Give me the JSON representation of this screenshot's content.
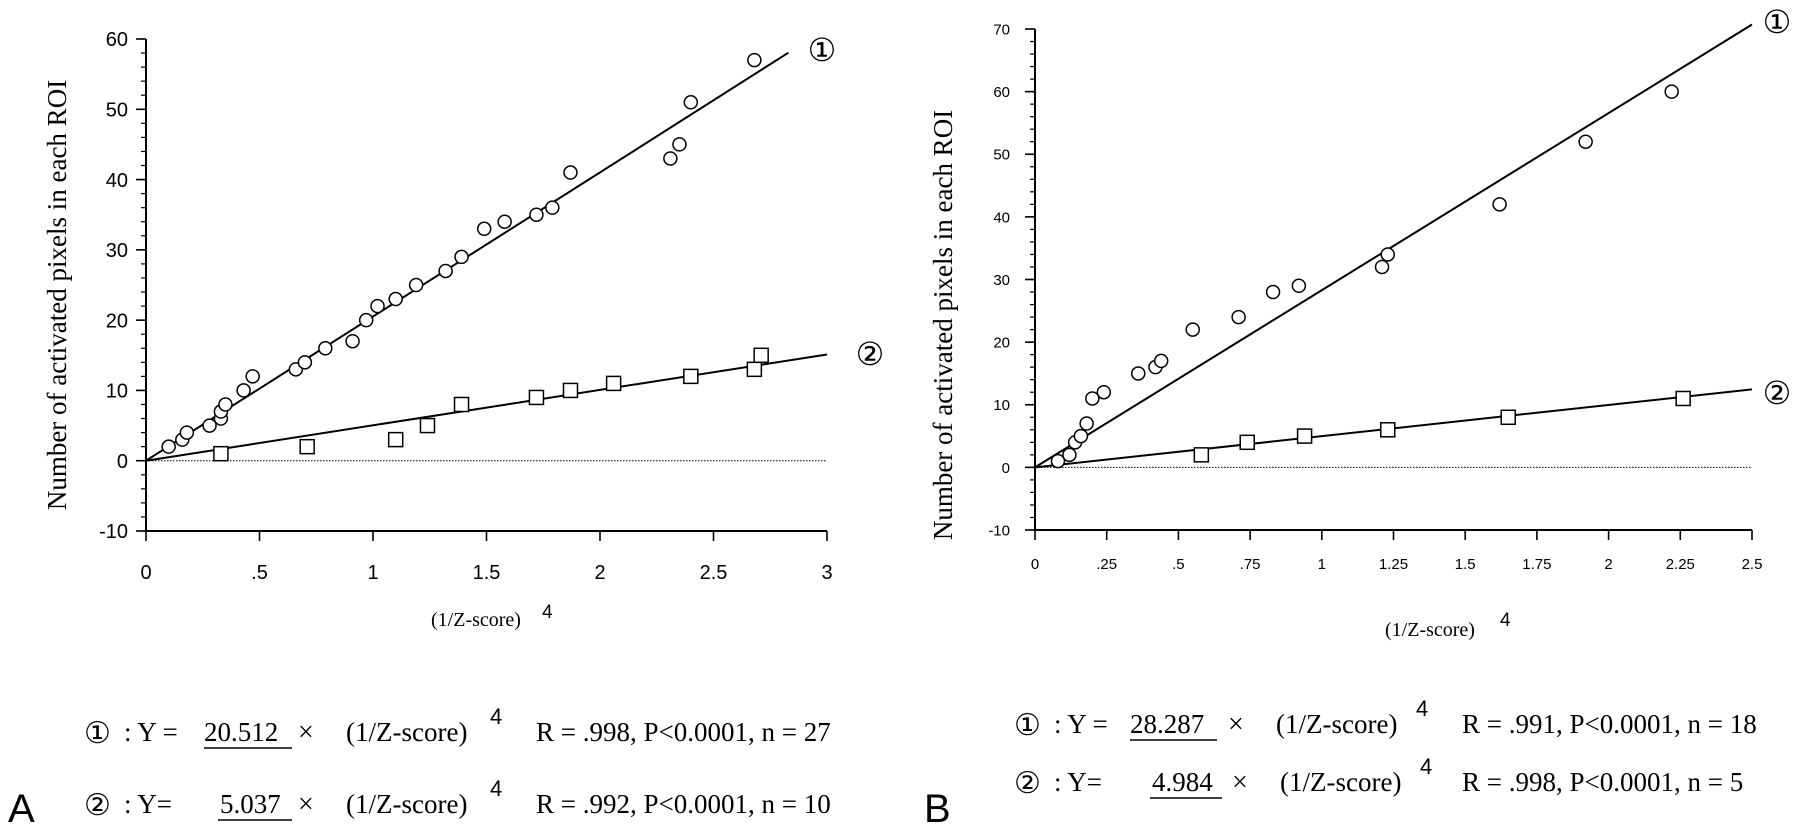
{
  "chart_data": [
    {
      "type": "scatter",
      "panel": "A",
      "xlabel": "(1/Z-score)",
      "xlabel_sup": "4",
      "ylabel": "Number of activated pixels in each ROI",
      "xlim": [
        0,
        3
      ],
      "ylim": [
        -10,
        60
      ],
      "x_ticks": [
        {
          "value": 0,
          "label": "0"
        },
        {
          "value": 0.5,
          "label": ".5"
        },
        {
          "value": 1,
          "label": "1"
        },
        {
          "value": 1.5,
          "label": "1.5"
        },
        {
          "value": 2,
          "label": "2"
        },
        {
          "value": 2.5,
          "label": "2.5"
        },
        {
          "value": 3,
          "label": "3"
        }
      ],
      "y_ticks": [
        {
          "value": -10,
          "label": "-10"
        },
        {
          "value": 0,
          "label": "0"
        },
        {
          "value": 10,
          "label": "10"
        },
        {
          "value": 20,
          "label": "20"
        },
        {
          "value": 30,
          "label": "30"
        },
        {
          "value": 40,
          "label": "40"
        },
        {
          "value": 50,
          "label": "50"
        },
        {
          "value": 60,
          "label": "60"
        }
      ],
      "y_minor_step": 2,
      "zero_line": {
        "y": 0,
        "x_end": 3
      },
      "series": [
        {
          "label": "①",
          "marker": "circle",
          "fit": {
            "slope": 20.512,
            "x_end": 2.83
          },
          "x": [
            0.1,
            0.16,
            0.18,
            0.28,
            0.33,
            0.33,
            0.35,
            0.43,
            0.47,
            0.66,
            0.7,
            0.79,
            0.91,
            0.97,
            1.02,
            1.1,
            1.19,
            1.32,
            1.39,
            1.49,
            1.58,
            1.72,
            1.79,
            1.87,
            2.31,
            2.35,
            2.4,
            2.68
          ],
          "y": [
            2,
            3,
            4,
            5,
            6,
            7,
            8,
            10,
            12,
            13,
            14,
            16,
            17,
            20,
            22,
            23,
            25,
            27,
            29,
            33,
            34,
            35,
            36,
            41,
            43,
            45,
            51,
            57
          ]
        },
        {
          "label": "②",
          "marker": "square",
          "fit": {
            "slope": 5.037,
            "x_end": 3.0
          },
          "x": [
            0.33,
            0.71,
            1.1,
            1.24,
            1.39,
            1.72,
            1.87,
            2.06,
            2.4,
            2.68,
            2.71
          ],
          "y": [
            1,
            2,
            3,
            5,
            8,
            9,
            10,
            11,
            12,
            13,
            15
          ]
        }
      ]
    },
    {
      "type": "scatter",
      "panel": "B",
      "xlabel": "(1/Z-score)",
      "xlabel_sup": "4",
      "ylabel": "Number of activated pixels in each ROI",
      "xlim": [
        0,
        2.5
      ],
      "ylim": [
        -10,
        70
      ],
      "x_ticks": [
        {
          "value": 0,
          "label": "0"
        },
        {
          "value": 0.25,
          "label": ".25"
        },
        {
          "value": 0.5,
          "label": ".5"
        },
        {
          "value": 0.75,
          "label": ".75"
        },
        {
          "value": 1,
          "label": "1"
        },
        {
          "value": 1.25,
          "label": "1.25"
        },
        {
          "value": 1.5,
          "label": "1.5"
        },
        {
          "value": 1.75,
          "label": "1.75"
        },
        {
          "value": 2,
          "label": "2"
        },
        {
          "value": 2.25,
          "label": "2.25"
        },
        {
          "value": 2.5,
          "label": "2.5"
        }
      ],
      "y_ticks": [
        {
          "value": -10,
          "label": "-10"
        },
        {
          "value": 0,
          "label": "0"
        },
        {
          "value": 10,
          "label": "10"
        },
        {
          "value": 20,
          "label": "20"
        },
        {
          "value": 30,
          "label": "30"
        },
        {
          "value": 40,
          "label": "40"
        },
        {
          "value": 50,
          "label": "50"
        },
        {
          "value": 60,
          "label": "60"
        },
        {
          "value": 70,
          "label": "70"
        }
      ],
      "y_minor_step": 2,
      "zero_line": {
        "y": 0,
        "x_end": 2.5
      },
      "series": [
        {
          "label": "①",
          "marker": "circle",
          "fit": {
            "slope": 28.287,
            "x_end": 2.5
          },
          "x": [
            0.08,
            0.12,
            0.14,
            0.16,
            0.18,
            0.2,
            0.24,
            0.36,
            0.42,
            0.44,
            0.55,
            0.71,
            0.83,
            0.92,
            1.21,
            1.23,
            1.62,
            1.92,
            2.22
          ],
          "y": [
            1,
            2,
            4,
            5,
            7,
            11,
            12,
            15,
            16,
            17,
            22,
            24,
            28,
            29,
            32,
            34,
            42,
            52,
            60
          ]
        },
        {
          "label": "②",
          "marker": "square",
          "fit": {
            "slope": 4.984,
            "x_end": 2.5
          },
          "x": [
            0.58,
            0.74,
            0.94,
            1.23,
            1.65,
            2.26
          ],
          "y": [
            2,
            4,
            5,
            6,
            8,
            11
          ]
        }
      ]
    }
  ],
  "panel_a": {
    "letter": "A",
    "eq1": {
      "marker": "①",
      "lhs": ": Y =",
      "coef": "20.512",
      "times": "×",
      "var": "(1/Z-score)",
      "sup": "4",
      "stats": "R = .998, P<0.0001, n = 27"
    },
    "eq2": {
      "marker": "②",
      "lhs": ": Y=",
      "coef": "5.037",
      "times": "×",
      "var": "(1/Z-score)",
      "sup": "4",
      "stats": "R = .992, P<0.0001, n = 10"
    }
  },
  "panel_b": {
    "letter": "B",
    "eq1": {
      "marker": "①",
      "lhs": ": Y =",
      "coef": "28.287",
      "times": "×",
      "var": "(1/Z-score)",
      "sup": "4",
      "stats": "R = .991, P<0.0001, n = 18"
    },
    "eq2": {
      "marker": "②",
      "lhs": ": Y=",
      "coef": "4.984",
      "times": "×",
      "var": "(1/Z-score)",
      "sup": "4",
      "stats": "R = .998, P<0.0001, n = 5"
    }
  }
}
